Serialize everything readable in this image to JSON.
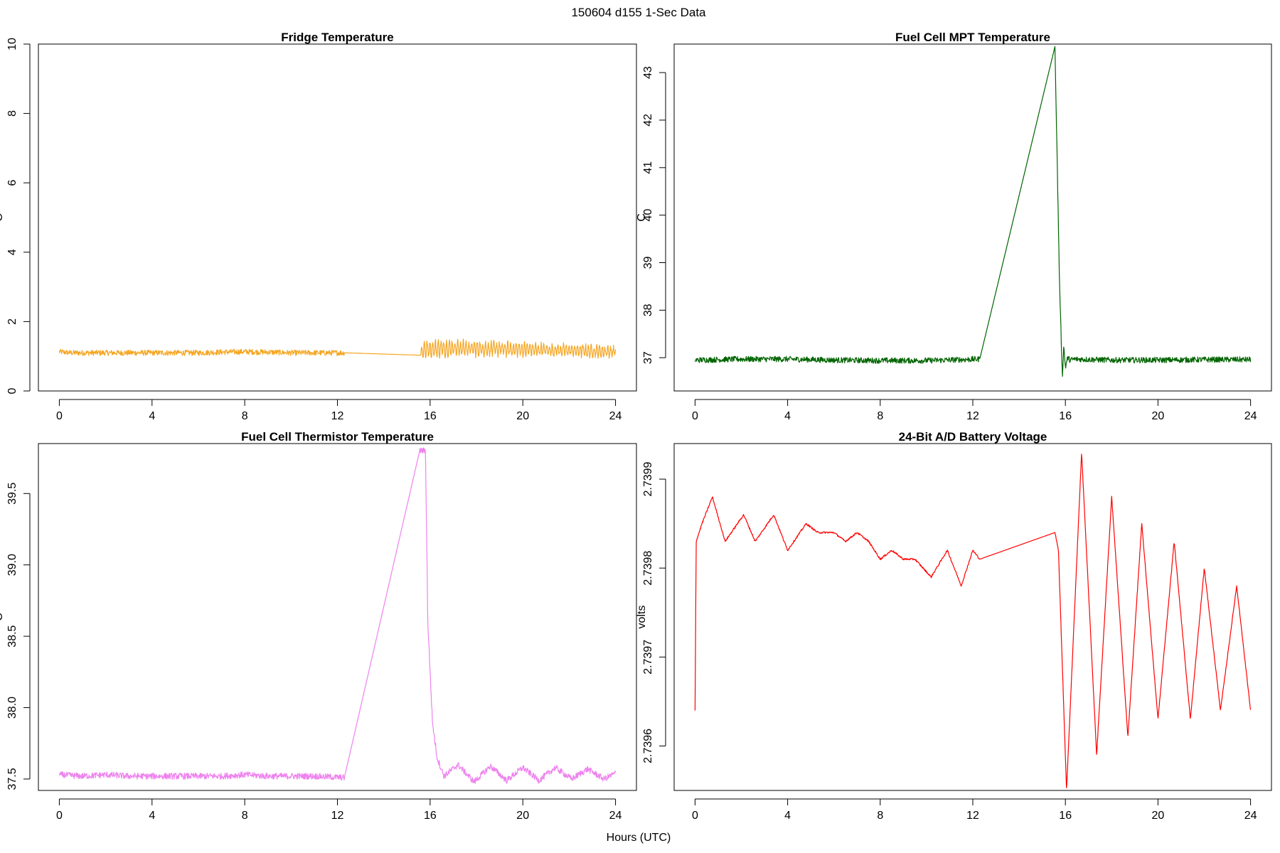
{
  "figure": {
    "title": "150604   d155   1-Sec Data",
    "xlabel": "Hours (UTC)"
  },
  "chart_data": [
    {
      "type": "line",
      "title": "Fridge Temperature",
      "ylabel": "C",
      "xlim": [
        0,
        24
      ],
      "ylim": [
        0,
        10
      ],
      "xticks": [
        0,
        4,
        8,
        12,
        16,
        20,
        24
      ],
      "yticks": [
        0,
        2,
        4,
        6,
        8,
        10
      ],
      "ytick_labels": [
        "0",
        "2",
        "4",
        "6",
        "8",
        "10"
      ],
      "color": "#f5a623",
      "noise": 0.08,
      "oscillation": {
        "start": 15.6,
        "end": 24,
        "period": 0.12,
        "amp_start": 0.22,
        "amp_end": 0.12
      },
      "series": [
        {
          "x": [
            0,
            0.5,
            2,
            4,
            6,
            7,
            8,
            9,
            10,
            11,
            12.3,
            15.6,
            15.7,
            17,
            18,
            20,
            22,
            24
          ],
          "y": [
            1.13,
            1.1,
            1.1,
            1.1,
            1.1,
            1.12,
            1.13,
            1.12,
            1.1,
            1.1,
            1.1,
            1.03,
            1.2,
            1.24,
            1.22,
            1.2,
            1.17,
            1.13
          ]
        }
      ]
    },
    {
      "type": "line",
      "title": "Fuel Cell MPT Temperature",
      "ylabel": "C",
      "xlim": [
        0,
        24
      ],
      "ylim": [
        36.3,
        43.6
      ],
      "xticks": [
        0,
        4,
        8,
        12,
        16,
        20,
        24
      ],
      "yticks": [
        37,
        38,
        39,
        40,
        41,
        42,
        43
      ],
      "ytick_labels": [
        "37",
        "38",
        "39",
        "40",
        "41",
        "42",
        "43"
      ],
      "color": "#006400",
      "noise": 0.06,
      "series": [
        {
          "x": [
            0,
            2,
            4,
            6,
            8,
            10,
            12.3,
            15.55,
            15.75,
            15.87,
            15.93,
            16.0,
            16.1,
            16.2,
            16.4,
            18,
            20,
            22,
            24
          ],
          "y": [
            36.95,
            36.97,
            36.97,
            36.95,
            36.94,
            36.94,
            36.97,
            43.55,
            38.5,
            36.6,
            37.25,
            36.8,
            37.0,
            36.95,
            36.97,
            36.95,
            36.95,
            36.96,
            36.96
          ]
        }
      ]
    },
    {
      "type": "line",
      "title": "Fuel Cell Thermistor Temperature",
      "ylabel": "C",
      "xlim": [
        0,
        24
      ],
      "ylim": [
        37.42,
        39.85
      ],
      "xticks": [
        0,
        4,
        8,
        12,
        16,
        20,
        24
      ],
      "yticks": [
        37.5,
        38.0,
        38.5,
        39.0,
        39.5
      ],
      "ytick_labels": [
        "37.5",
        "38.0",
        "38.5",
        "39.0",
        "39.5"
      ],
      "color": "#ee82ee",
      "noise": 0.022,
      "series": [
        {
          "x": [
            0,
            1,
            2,
            3,
            4,
            5,
            6,
            7,
            8,
            9,
            10,
            11,
            12.3,
            15.55,
            15.8,
            15.9,
            16.1,
            16.3,
            16.6,
            17.2,
            17.9,
            18.6,
            19.3,
            20.0,
            20.7,
            21.4,
            22.1,
            22.8,
            23.5,
            24
          ],
          "y": [
            37.53,
            37.52,
            37.53,
            37.52,
            37.52,
            37.52,
            37.52,
            37.52,
            37.53,
            37.52,
            37.52,
            37.52,
            37.51,
            39.8,
            39.8,
            38.6,
            37.9,
            37.65,
            37.52,
            37.6,
            37.48,
            37.59,
            37.49,
            37.58,
            37.49,
            37.58,
            37.5,
            37.57,
            37.5,
            37.54
          ]
        }
      ]
    },
    {
      "type": "line",
      "title": "24-Bit A/D Battery Voltage",
      "ylabel": "volts",
      "xlim": [
        0,
        24
      ],
      "ylim": [
        2.73955,
        2.73994
      ],
      "xticks": [
        0,
        4,
        8,
        12,
        16,
        20,
        24
      ],
      "yticks": [
        2.7396,
        2.7397,
        2.7398,
        2.7399
      ],
      "ytick_labels": [
        "2.7396",
        "2.7397",
        "2.7398",
        "2.7399"
      ],
      "color": "#ff0000",
      "noise": 1e-06,
      "series": [
        {
          "x": [
            0,
            0.05,
            0.3,
            0.75,
            1.3,
            2.1,
            2.6,
            3.4,
            4.0,
            4.8,
            5.3,
            6.0,
            6.5,
            7.0,
            7.5,
            8.0,
            8.5,
            9.0,
            9.5,
            10.2,
            10.9,
            11.5,
            12.0,
            12.3,
            15.55,
            15.7,
            16.05,
            16.7,
            17.35,
            18.0,
            18.7,
            19.3,
            20.0,
            20.7,
            21.4,
            22.0,
            22.7,
            23.4,
            24
          ],
          "y": [
            2.73964,
            2.73983,
            2.73985,
            2.73988,
            2.73983,
            2.73986,
            2.73983,
            2.73986,
            2.73982,
            2.73985,
            2.73984,
            2.73984,
            2.73983,
            2.73984,
            2.73983,
            2.73981,
            2.73982,
            2.73981,
            2.73981,
            2.73979,
            2.73982,
            2.73978,
            2.73982,
            2.73981,
            2.73984,
            2.73982,
            2.73955,
            2.73993,
            2.73959,
            2.73988,
            2.73961,
            2.73985,
            2.73963,
            2.73983,
            2.73963,
            2.7398,
            2.73964,
            2.73978,
            2.73964
          ]
        }
      ]
    }
  ]
}
